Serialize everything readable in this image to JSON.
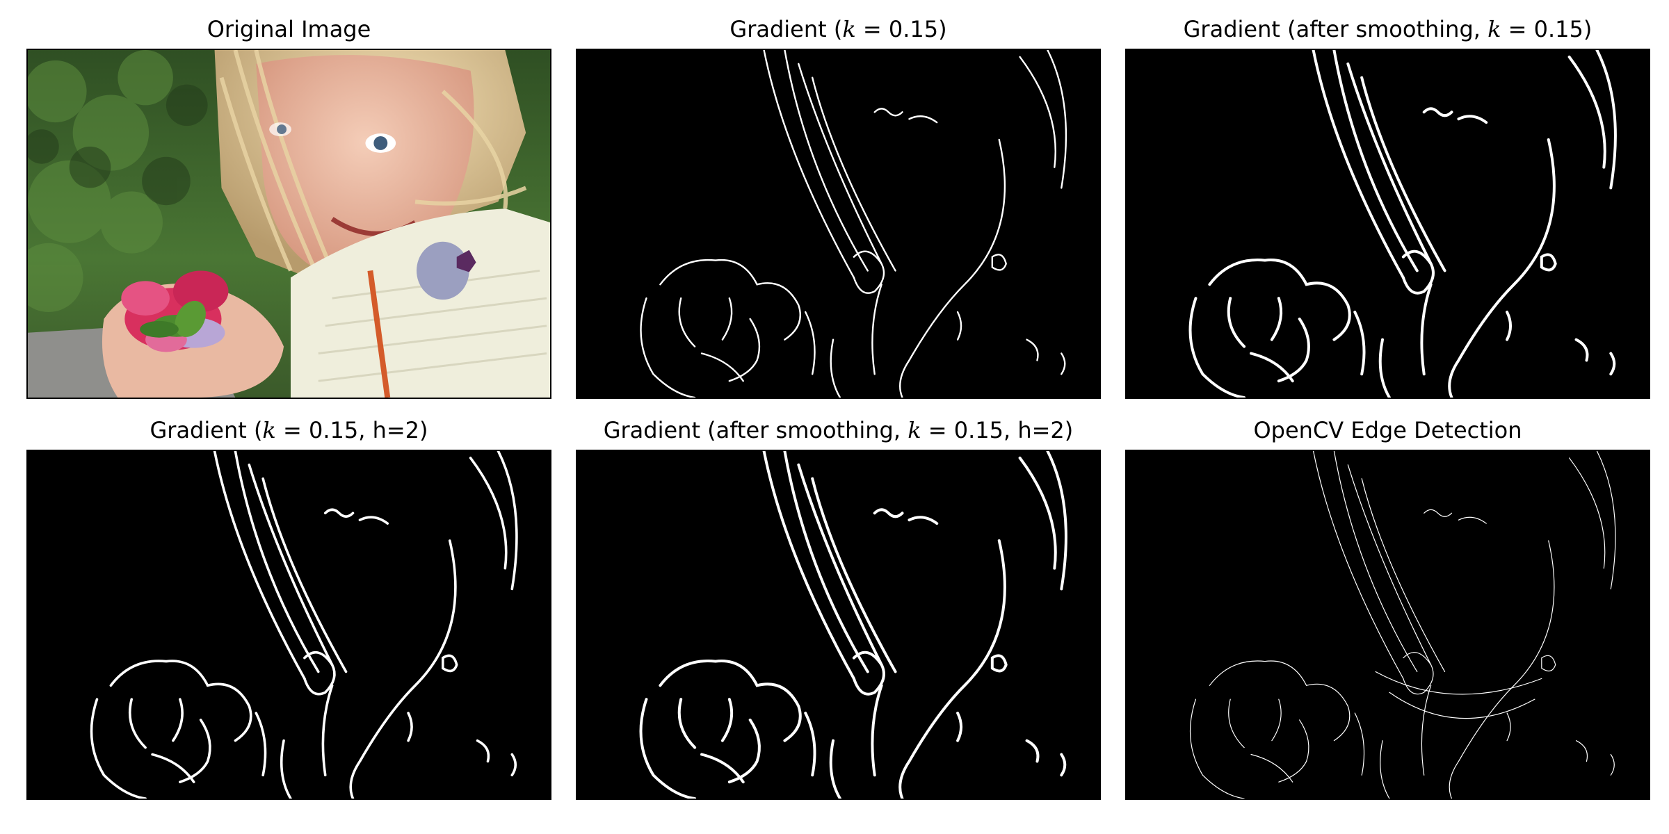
{
  "figure": {
    "panels": [
      {
        "id": "original",
        "title": "Original Image",
        "kind": "photo"
      },
      {
        "id": "gradient",
        "title_prefix": "Gradient (",
        "k_label": "k",
        "k_value": "= 0.15",
        "title_suffix": ")",
        "kind": "edges",
        "stroke": "medium"
      },
      {
        "id": "gradient-smoothed",
        "title_prefix": "Gradient (after smoothing, ",
        "k_label": "k",
        "k_value": "= 0.15",
        "title_suffix": ")",
        "kind": "edges",
        "stroke": "thick"
      },
      {
        "id": "gradient-h2",
        "title_prefix": "Gradient (",
        "k_label": "k",
        "k_value": "= 0.15, h=2)",
        "kind": "edges",
        "stroke": "thick"
      },
      {
        "id": "gradient-smoothed-h2",
        "title_prefix": "Gradient (after smoothing, ",
        "k_label": "k",
        "k_value": "= 0.15, h=2)",
        "kind": "edges",
        "stroke": "thick"
      },
      {
        "id": "opencv",
        "title": "OpenCV Edge Detection",
        "kind": "edges",
        "stroke": "thin"
      }
    ],
    "colors": {
      "background": "#ffffff",
      "edge_bg": "#000000",
      "edge_fg": "#ffffff",
      "foliage": "#3f6a2e",
      "hair": "#d9c08e",
      "skin": "#e9b9a2",
      "sweater": "#efeedc",
      "flower": "#d8305e",
      "road": "#8f8f8c"
    }
  }
}
